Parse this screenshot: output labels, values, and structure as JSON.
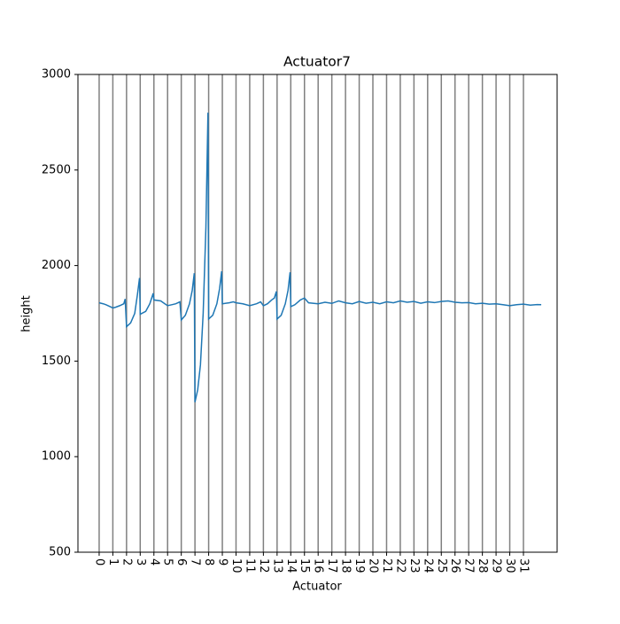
{
  "chart_data": {
    "type": "line",
    "title": "Actuator7",
    "xlabel": "Actuator",
    "ylabel": "height",
    "color": "#1f77b4",
    "grid": "x",
    "grid_color": "#808080",
    "xlim": [
      -1.55,
      33.46
    ],
    "ylim": [
      500,
      3000
    ],
    "xticks": [
      0,
      1,
      2,
      3,
      4,
      5,
      6,
      7,
      8,
      9,
      10,
      11,
      12,
      13,
      14,
      15,
      16,
      17,
      18,
      19,
      20,
      21,
      22,
      23,
      24,
      25,
      26,
      27,
      28,
      29,
      30,
      31
    ],
    "yticks": [
      500,
      1000,
      1500,
      2000,
      2500,
      3000
    ],
    "x": [
      0,
      0.3,
      0.5,
      0.8,
      1,
      1.2,
      1.5,
      1.8,
      1.9,
      2,
      2.3,
      2.6,
      2.8,
      2.95,
      3,
      3.4,
      3.7,
      3.95,
      4,
      4.5,
      4.8,
      5,
      5.3,
      5.6,
      5.9,
      6,
      6.3,
      6.6,
      6.8,
      6.95,
      7,
      7.2,
      7.4,
      7.6,
      7.8,
      7.95,
      8,
      8.3,
      8.6,
      8.8,
      8.95,
      9,
      9.5,
      9.8,
      10,
      10.5,
      11,
      11.5,
      11.8,
      12,
      12.3,
      12.6,
      12.8,
      12.95,
      13,
      13.3,
      13.6,
      13.8,
      13.95,
      14,
      14.3,
      14.7,
      15,
      15.3,
      16,
      16.5,
      17,
      17.5,
      18,
      18.5,
      19,
      19.5,
      20,
      20.5,
      21,
      21.5,
      22,
      22.5,
      23,
      23.5,
      24,
      24.5,
      25,
      25.5,
      26,
      26.5,
      27,
      27.5,
      28,
      28.5,
      29,
      29.5,
      30,
      30.5,
      31,
      31.5,
      32,
      32.3
    ],
    "values": [
      1805,
      1800,
      1795,
      1785,
      1778,
      1782,
      1790,
      1800,
      1825,
      1680,
      1700,
      1750,
      1850,
      1935,
      1745,
      1760,
      1800,
      1855,
      1820,
      1815,
      1800,
      1790,
      1795,
      1800,
      1810,
      1715,
      1740,
      1800,
      1870,
      1960,
      1285,
      1350,
      1480,
      1750,
      2200,
      2800,
      1720,
      1740,
      1800,
      1880,
      1970,
      1800,
      1805,
      1810,
      1805,
      1800,
      1790,
      1800,
      1810,
      1790,
      1800,
      1820,
      1830,
      1865,
      1720,
      1740,
      1800,
      1870,
      1965,
      1785,
      1795,
      1820,
      1830,
      1805,
      1800,
      1808,
      1802,
      1815,
      1805,
      1800,
      1812,
      1803,
      1808,
      1800,
      1810,
      1805,
      1815,
      1808,
      1812,
      1803,
      1810,
      1806,
      1812,
      1815,
      1808,
      1805,
      1806,
      1800,
      1803,
      1798,
      1800,
      1795,
      1790,
      1795,
      1798,
      1793,
      1796,
      1795
    ]
  }
}
